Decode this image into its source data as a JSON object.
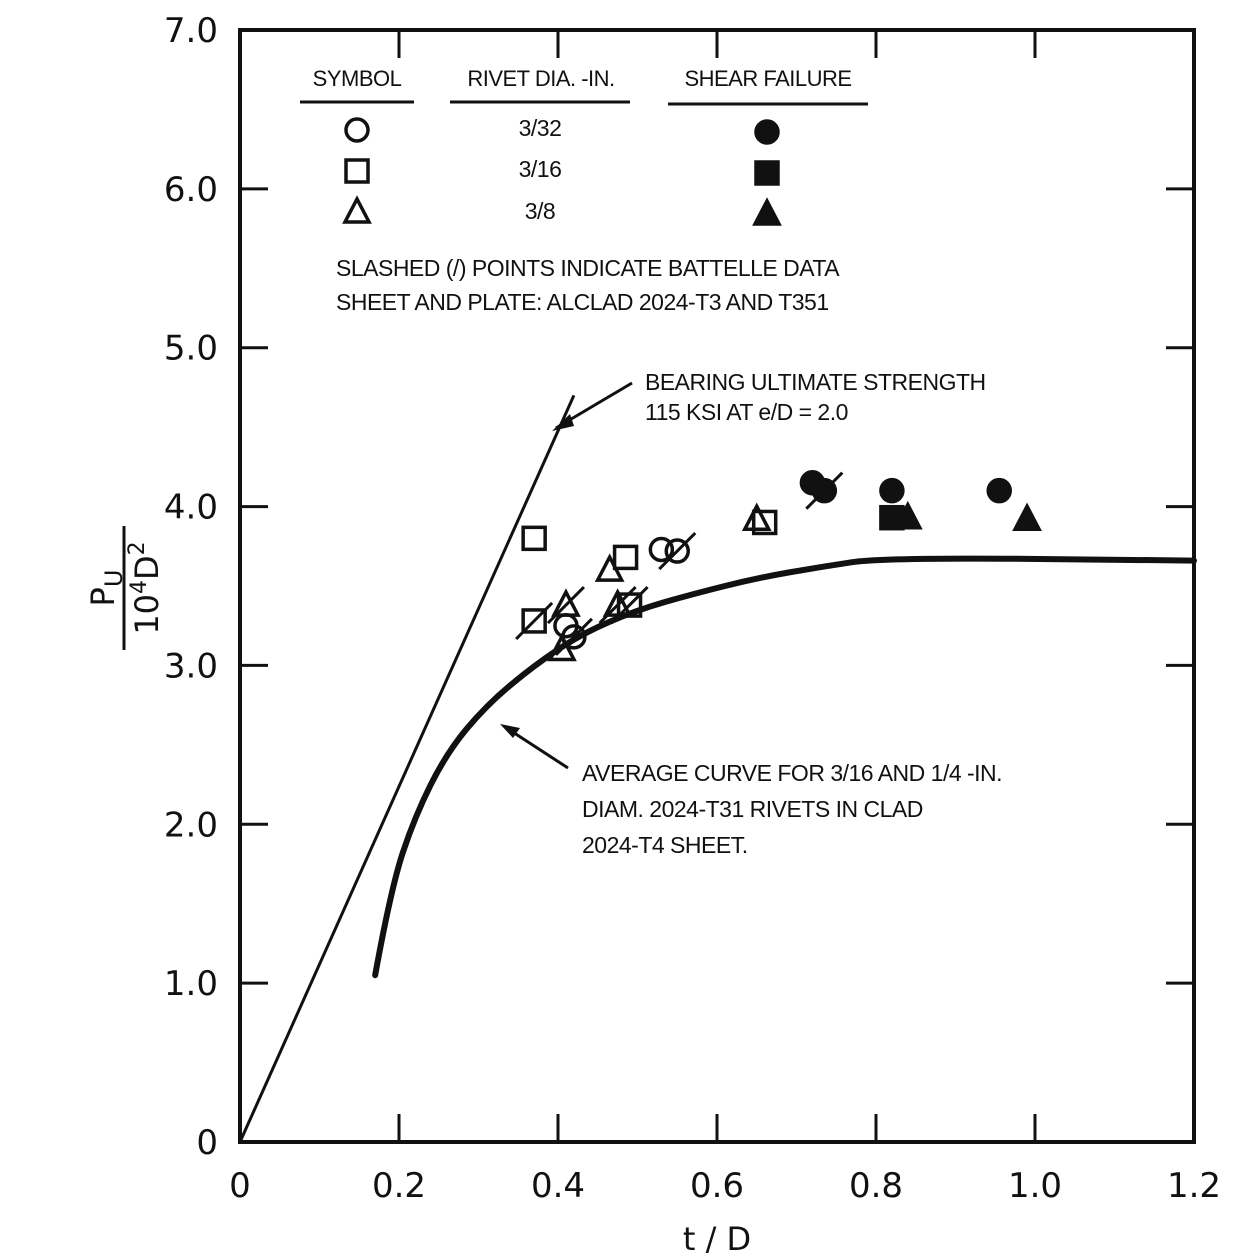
{
  "chart_data": {
    "type": "scatter",
    "xlabel": "t / D",
    "ylabel_top": "P",
    "ylabel_top_sub": "U",
    "ylabel_bottom_base": "10",
    "ylabel_bottom_sup": "4",
    "ylabel_bottom_var": "D",
    "ylabel_bottom_sup2": "2",
    "xlim": [
      0,
      1.2
    ],
    "ylim": [
      0,
      7.0
    ],
    "x_ticks": [
      {
        "value": 0,
        "label": "0"
      },
      {
        "value": 0.2,
        "label": "0.2"
      },
      {
        "value": 0.4,
        "label": "0.4"
      },
      {
        "value": 0.6,
        "label": "0.6"
      },
      {
        "value": 0.8,
        "label": "0.8"
      },
      {
        "value": 1.0,
        "label": "1.0"
      },
      {
        "value": 1.2,
        "label": "1.2"
      }
    ],
    "y_ticks": [
      {
        "value": 0,
        "label": "0"
      },
      {
        "value": 1.0,
        "label": "1.0"
      },
      {
        "value": 2.0,
        "label": "2.0"
      },
      {
        "value": 3.0,
        "label": "3.0"
      },
      {
        "value": 4.0,
        "label": "4.0"
      },
      {
        "value": 5.0,
        "label": "5.0"
      },
      {
        "value": 6.0,
        "label": "6.0"
      },
      {
        "value": 7.0,
        "label": "7.0"
      }
    ],
    "grid": false,
    "legend": {
      "headers": [
        "SYMBOL",
        "RIVET DIA. -IN.",
        "SHEAR FAILURE"
      ],
      "rows": [
        {
          "shape": "circle",
          "dia": "3/32"
        },
        {
          "shape": "square",
          "dia": "3/16"
        },
        {
          "shape": "triangle",
          "dia": "3/8"
        }
      ],
      "note_lines": [
        "SLASHED (/) POINTS INDICATE BATTELLE DATA",
        "SHEET AND PLATE: ALCLAD 2024-T3 AND T351"
      ]
    },
    "bearing_line": {
      "points": [
        [
          0.0,
          0.0
        ],
        [
          0.42,
          4.7
        ]
      ],
      "label_lines": [
        "BEARING ULTIMATE STRENGTH",
        "115 KSI AT e/D = 2.0"
      ]
    },
    "average_curve": {
      "points": [
        [
          0.17,
          1.05
        ],
        [
          0.19,
          1.6
        ],
        [
          0.22,
          2.05
        ],
        [
          0.26,
          2.45
        ],
        [
          0.31,
          2.75
        ],
        [
          0.37,
          3.0
        ],
        [
          0.43,
          3.2
        ],
        [
          0.5,
          3.35
        ],
        [
          0.57,
          3.45
        ],
        [
          0.65,
          3.55
        ],
        [
          0.73,
          3.62
        ],
        [
          0.81,
          3.68
        ],
        [
          1.2,
          3.66
        ]
      ],
      "label_lines": [
        "AVERAGE CURVE FOR 3/16 AND 1/4 -IN.",
        "DIAM. 2024-T31 RIVETS IN CLAD",
        "2024-T4 SHEET."
      ]
    },
    "series": [
      {
        "shape": "circle",
        "filled": false,
        "points": [
          {
            "x": 0.41,
            "y": 3.25,
            "slashed": false
          },
          {
            "x": 0.42,
            "y": 3.18,
            "slashed": true
          },
          {
            "x": 0.53,
            "y": 3.73,
            "slashed": false
          },
          {
            "x": 0.55,
            "y": 3.72,
            "slashed": true
          }
        ]
      },
      {
        "shape": "square",
        "filled": false,
        "points": [
          {
            "x": 0.37,
            "y": 3.8,
            "slashed": false
          },
          {
            "x": 0.37,
            "y": 3.28,
            "slashed": true
          },
          {
            "x": 0.485,
            "y": 3.68,
            "slashed": false
          },
          {
            "x": 0.49,
            "y": 3.38,
            "slashed": true
          },
          {
            "x": 0.66,
            "y": 3.9,
            "slashed": false
          }
        ]
      },
      {
        "shape": "triangle",
        "filled": false,
        "points": [
          {
            "x": 0.405,
            "y": 3.1,
            "slashed": false
          },
          {
            "x": 0.41,
            "y": 3.38,
            "slashed": true
          },
          {
            "x": 0.465,
            "y": 3.6,
            "slashed": false
          },
          {
            "x": 0.475,
            "y": 3.38,
            "slashed": true
          },
          {
            "x": 0.65,
            "y": 3.92,
            "slashed": false
          }
        ]
      },
      {
        "shape": "circle",
        "filled": true,
        "points": [
          {
            "x": 0.72,
            "y": 4.15,
            "slashed": false
          },
          {
            "x": 0.735,
            "y": 4.1,
            "slashed": true
          },
          {
            "x": 0.82,
            "y": 4.1,
            "slashed": false
          },
          {
            "x": 0.955,
            "y": 4.1,
            "slashed": false
          }
        ]
      },
      {
        "shape": "square",
        "filled": true,
        "points": [
          {
            "x": 0.82,
            "y": 3.93,
            "slashed": false
          }
        ]
      },
      {
        "shape": "triangle",
        "filled": true,
        "points": [
          {
            "x": 0.84,
            "y": 3.93,
            "slashed": false
          },
          {
            "x": 0.99,
            "y": 3.92,
            "slashed": false
          }
        ]
      }
    ]
  }
}
